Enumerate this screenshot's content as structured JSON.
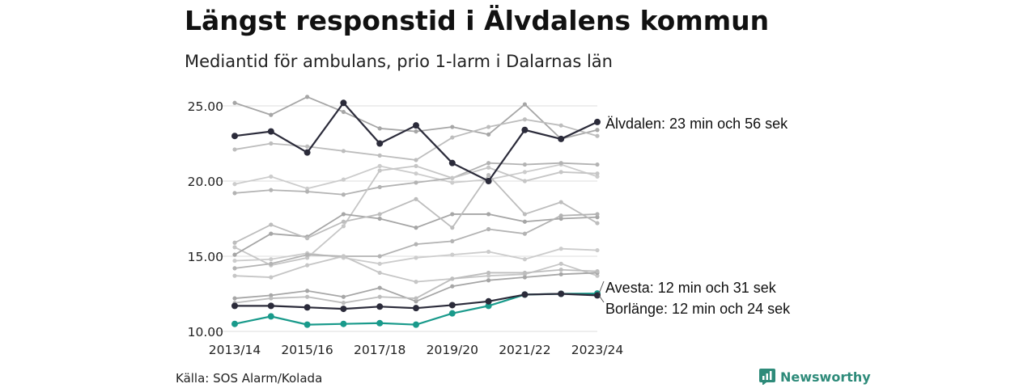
{
  "header": {
    "title": "Längst responstid i Älvdalens kommun",
    "subtitle": "Mediantid för ambulans, prio 1-larm i Dalarnas län"
  },
  "footer": {
    "source": "Källa: SOS Alarm/Kolada",
    "brand": "Newsworthy"
  },
  "colors": {
    "highlight": "#2b2b3a",
    "accent": "#199a8b",
    "background_gray": [
      "#a6a6a6",
      "#bdbdbd",
      "#cccccc",
      "#b3b3b3",
      "#c6c6c6"
    ],
    "grid": "#dddddd",
    "brand": "#2e8b7a"
  },
  "chart_data": {
    "type": "line",
    "x": [
      "2013/14",
      "2014/15",
      "2015/16",
      "2016/17",
      "2017/18",
      "2018/19",
      "2019/20",
      "2020/21",
      "2021/22",
      "2022/23",
      "2023/24"
    ],
    "x_ticks": [
      "2013/14",
      "2015/16",
      "2017/18",
      "2019/20",
      "2021/22",
      "2023/24"
    ],
    "ylim": [
      10,
      25
    ],
    "y_ticks": [
      "10.00",
      "15.00",
      "20.00",
      "25.00"
    ],
    "grid": true,
    "highlighted": [
      {
        "name": "Älvdalen",
        "label": "Älvdalen: 23 min och 56 sek",
        "color": "#2b2b3a",
        "values": [
          23.0,
          23.3,
          21.9,
          25.2,
          22.5,
          23.7,
          21.2,
          20.0,
          23.4,
          22.8,
          23.93
        ]
      },
      {
        "name": "Avesta",
        "label": "Avesta: 12 min och 31 sek",
        "color": "#199a8b",
        "values": [
          10.5,
          11.0,
          10.45,
          10.5,
          10.55,
          10.45,
          11.2,
          11.7,
          12.45,
          12.5,
          12.52
        ]
      },
      {
        "name": "Borlänge",
        "label": "Borlänge: 12 min och 24 sek",
        "color": "#2b2b3a",
        "values": [
          11.7,
          11.7,
          11.6,
          11.5,
          11.65,
          11.55,
          11.75,
          12.0,
          12.45,
          12.5,
          12.4
        ]
      }
    ],
    "background_series": [
      {
        "values": [
          25.2,
          24.4,
          25.6,
          24.6,
          23.5,
          23.3,
          23.6,
          23.1,
          25.1,
          22.8,
          23.4
        ]
      },
      {
        "values": [
          22.1,
          22.5,
          22.3,
          22.0,
          21.7,
          21.4,
          22.9,
          23.6,
          24.1,
          23.7,
          23.0
        ]
      },
      {
        "values": [
          19.8,
          20.3,
          19.5,
          20.1,
          21.0,
          20.5,
          19.9,
          20.1,
          20.6,
          21.1,
          20.3
        ]
      },
      {
        "values": [
          19.2,
          19.4,
          19.3,
          19.1,
          19.6,
          19.9,
          20.2,
          21.2,
          21.1,
          21.2,
          21.1
        ]
      },
      {
        "values": [
          15.6,
          14.4,
          14.9,
          17.0,
          20.7,
          21.0,
          20.2,
          20.9,
          20.0,
          20.6,
          20.5
        ]
      },
      {
        "values": [
          15.1,
          16.5,
          16.3,
          17.8,
          17.5,
          16.9,
          17.8,
          17.8,
          17.3,
          17.5,
          17.6
        ]
      },
      {
        "values": [
          15.9,
          17.1,
          16.2,
          17.3,
          17.8,
          18.8,
          16.9,
          20.4,
          17.8,
          18.6,
          17.2
        ]
      },
      {
        "values": [
          14.7,
          14.8,
          15.2,
          14.9,
          14.5,
          14.9,
          15.1,
          15.3,
          14.8,
          15.5,
          15.4
        ]
      },
      {
        "values": [
          14.2,
          14.5,
          15.1,
          15.0,
          15.0,
          15.8,
          16.0,
          16.8,
          16.5,
          17.7,
          17.8
        ]
      },
      {
        "values": [
          13.7,
          13.6,
          14.4,
          15.0,
          13.9,
          13.3,
          13.5,
          13.7,
          13.8,
          14.5,
          13.7
        ]
      },
      {
        "values": [
          12.2,
          12.4,
          12.7,
          12.3,
          12.9,
          12.0,
          13.0,
          13.4,
          13.6,
          13.8,
          13.9
        ]
      },
      {
        "values": [
          11.9,
          12.2,
          12.3,
          11.9,
          12.3,
          12.2,
          13.5,
          13.9,
          13.9,
          14.1,
          14.0
        ]
      }
    ]
  }
}
